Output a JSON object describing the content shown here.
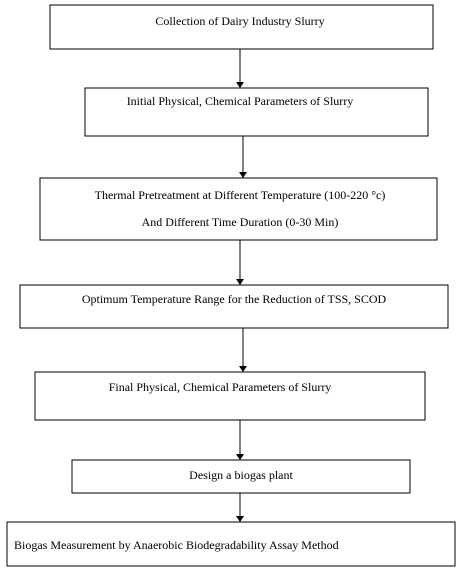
{
  "nodes": [
    {
      "lines": [
        "Collection of Dairy Industry Slurry"
      ]
    },
    {
      "lines": [
        "Initial Physical, Chemical Parameters of Slurry"
      ]
    },
    {
      "lines": [
        "Thermal Pretreatment at Different Temperature (100-220 °c)",
        "And Different Time Duration (0-30 Min)"
      ]
    },
    {
      "lines": [
        "Optimum Temperature Range for the Reduction of TSS, SCOD"
      ]
    },
    {
      "lines": [
        "Final Physical, Chemical Parameters of Slurry"
      ]
    },
    {
      "lines": [
        "Design a biogas plant"
      ]
    },
    {
      "lines": [
        "Biogas Measurement by Anaerobic Biodegradability Assay Method"
      ]
    }
  ]
}
